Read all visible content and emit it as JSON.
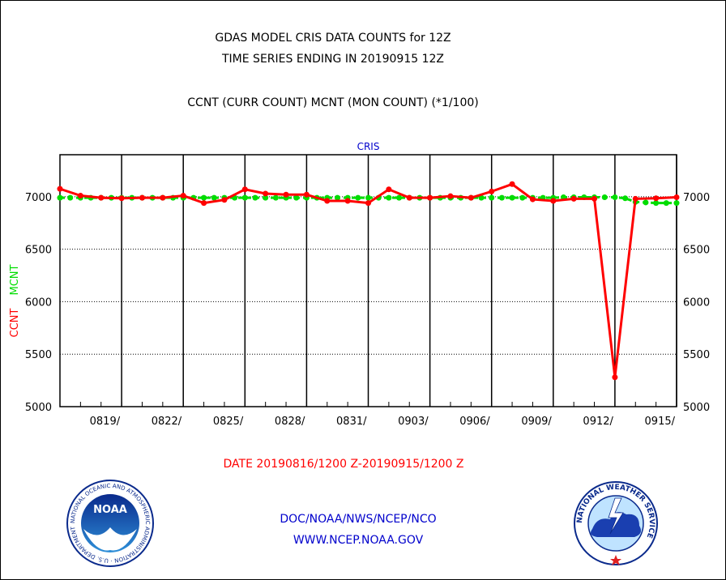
{
  "header": {
    "title_line1": "GDAS MODEL CRIS DATA COUNTS for 12Z",
    "title_line2": "TIME SERIES ENDING IN 20190915 12Z",
    "title_line3": "CCNT (CURR COUNT) MCNT (MON COUNT) (*1/100)"
  },
  "footer": {
    "date_range": "DATE 20190816/1200 Z-20190915/1200 Z",
    "org": "DOC/NOAA/NWS/NCEP/NCO",
    "url": "WWW.NCEP.NOAA.GOV"
  },
  "logos": {
    "noaa_text": "NOAA",
    "noaa_ring_text": "NATIONAL OCEANIC AND ATMOSPHERIC ADMINISTRATION · U.S. DEPARTMENT OF COMMERCE",
    "nws_ring_text": "NATIONAL WEATHER SERVICE"
  },
  "colors": {
    "ccnt": "#ff0000",
    "mcnt": "#00dd00",
    "panel_label": "#0000cc",
    "date_range": "#ff0000",
    "footer": "#0000cc"
  },
  "chart_data": {
    "type": "line",
    "title": "CRIS",
    "ylabel_series": [
      {
        "text": "CCNT",
        "color": "#ff0000"
      },
      {
        "text": "MCNT",
        "color": "#00dd00"
      }
    ],
    "ylim": [
      5000,
      7400
    ],
    "yticks": [
      5000,
      5500,
      6000,
      6500,
      7000
    ],
    "xlim": [
      0,
      30
    ],
    "xtick_labels": [
      {
        "x": 3,
        "label": "0819/"
      },
      {
        "x": 6,
        "label": "0822/"
      },
      {
        "x": 9,
        "label": "0825/"
      },
      {
        "x": 12,
        "label": "0828/"
      },
      {
        "x": 15,
        "label": "0831/"
      },
      {
        "x": 18,
        "label": "0903/"
      },
      {
        "x": 21,
        "label": "0906/"
      },
      {
        "x": 24,
        "label": "0909/"
      },
      {
        "x": 27,
        "label": "0912/"
      },
      {
        "x": 30,
        "label": "0915/"
      }
    ],
    "grid": true,
    "series": [
      {
        "name": "CCNT",
        "color": "#ff0000",
        "x": [
          0,
          1,
          2,
          3,
          4,
          5,
          6,
          7,
          8,
          9,
          10,
          11,
          12,
          13,
          14,
          15,
          16,
          17,
          18,
          19,
          20,
          21,
          22,
          23,
          24,
          25,
          26,
          27,
          28,
          29,
          30
        ],
        "values": [
          7075,
          7010,
          6990,
          6985,
          6990,
          6990,
          7010,
          6940,
          6970,
          7070,
          7030,
          7020,
          7020,
          6960,
          6960,
          6940,
          7070,
          6990,
          6990,
          7005,
          6990,
          7050,
          7120,
          6975,
          6960,
          6980,
          6980,
          5280,
          6980,
          6985,
          6995
        ]
      },
      {
        "name": "MCNT",
        "color": "#00dd00",
        "x": [
          0,
          0.5,
          1,
          1.5,
          2,
          2.5,
          3,
          3.5,
          4,
          4.5,
          5,
          5.5,
          6,
          6.5,
          7,
          7.5,
          8,
          8.5,
          9,
          9.5,
          10,
          10.5,
          11,
          11.5,
          12,
          12.5,
          13,
          13.5,
          14,
          14.5,
          15,
          15.5,
          16,
          16.5,
          17,
          17.5,
          18,
          18.5,
          19,
          19.5,
          20,
          20.5,
          21,
          21.5,
          22,
          22.5,
          23,
          23.5,
          24,
          24.5,
          25,
          25.5,
          26,
          26.5,
          27,
          27.5,
          28,
          28.5,
          29,
          29.5,
          30
        ],
        "values": [
          6990,
          6990,
          6990,
          6990,
          6990,
          6990,
          6990,
          6990,
          6990,
          6990,
          6990,
          6990,
          6990,
          6990,
          6990,
          6990,
          6990,
          6990,
          6990,
          6990,
          6990,
          6990,
          6990,
          6990,
          6990,
          6990,
          6990,
          6990,
          6990,
          6990,
          6990,
          6990,
          6990,
          6990,
          6990,
          6990,
          6990,
          6990,
          6990,
          6990,
          6990,
          6990,
          6990,
          6990,
          6990,
          6990,
          6990,
          6990,
          6990,
          6995,
          6995,
          6995,
          6995,
          6995,
          6995,
          6985,
          6950,
          6945,
          6940,
          6940,
          6940
        ]
      }
    ]
  }
}
